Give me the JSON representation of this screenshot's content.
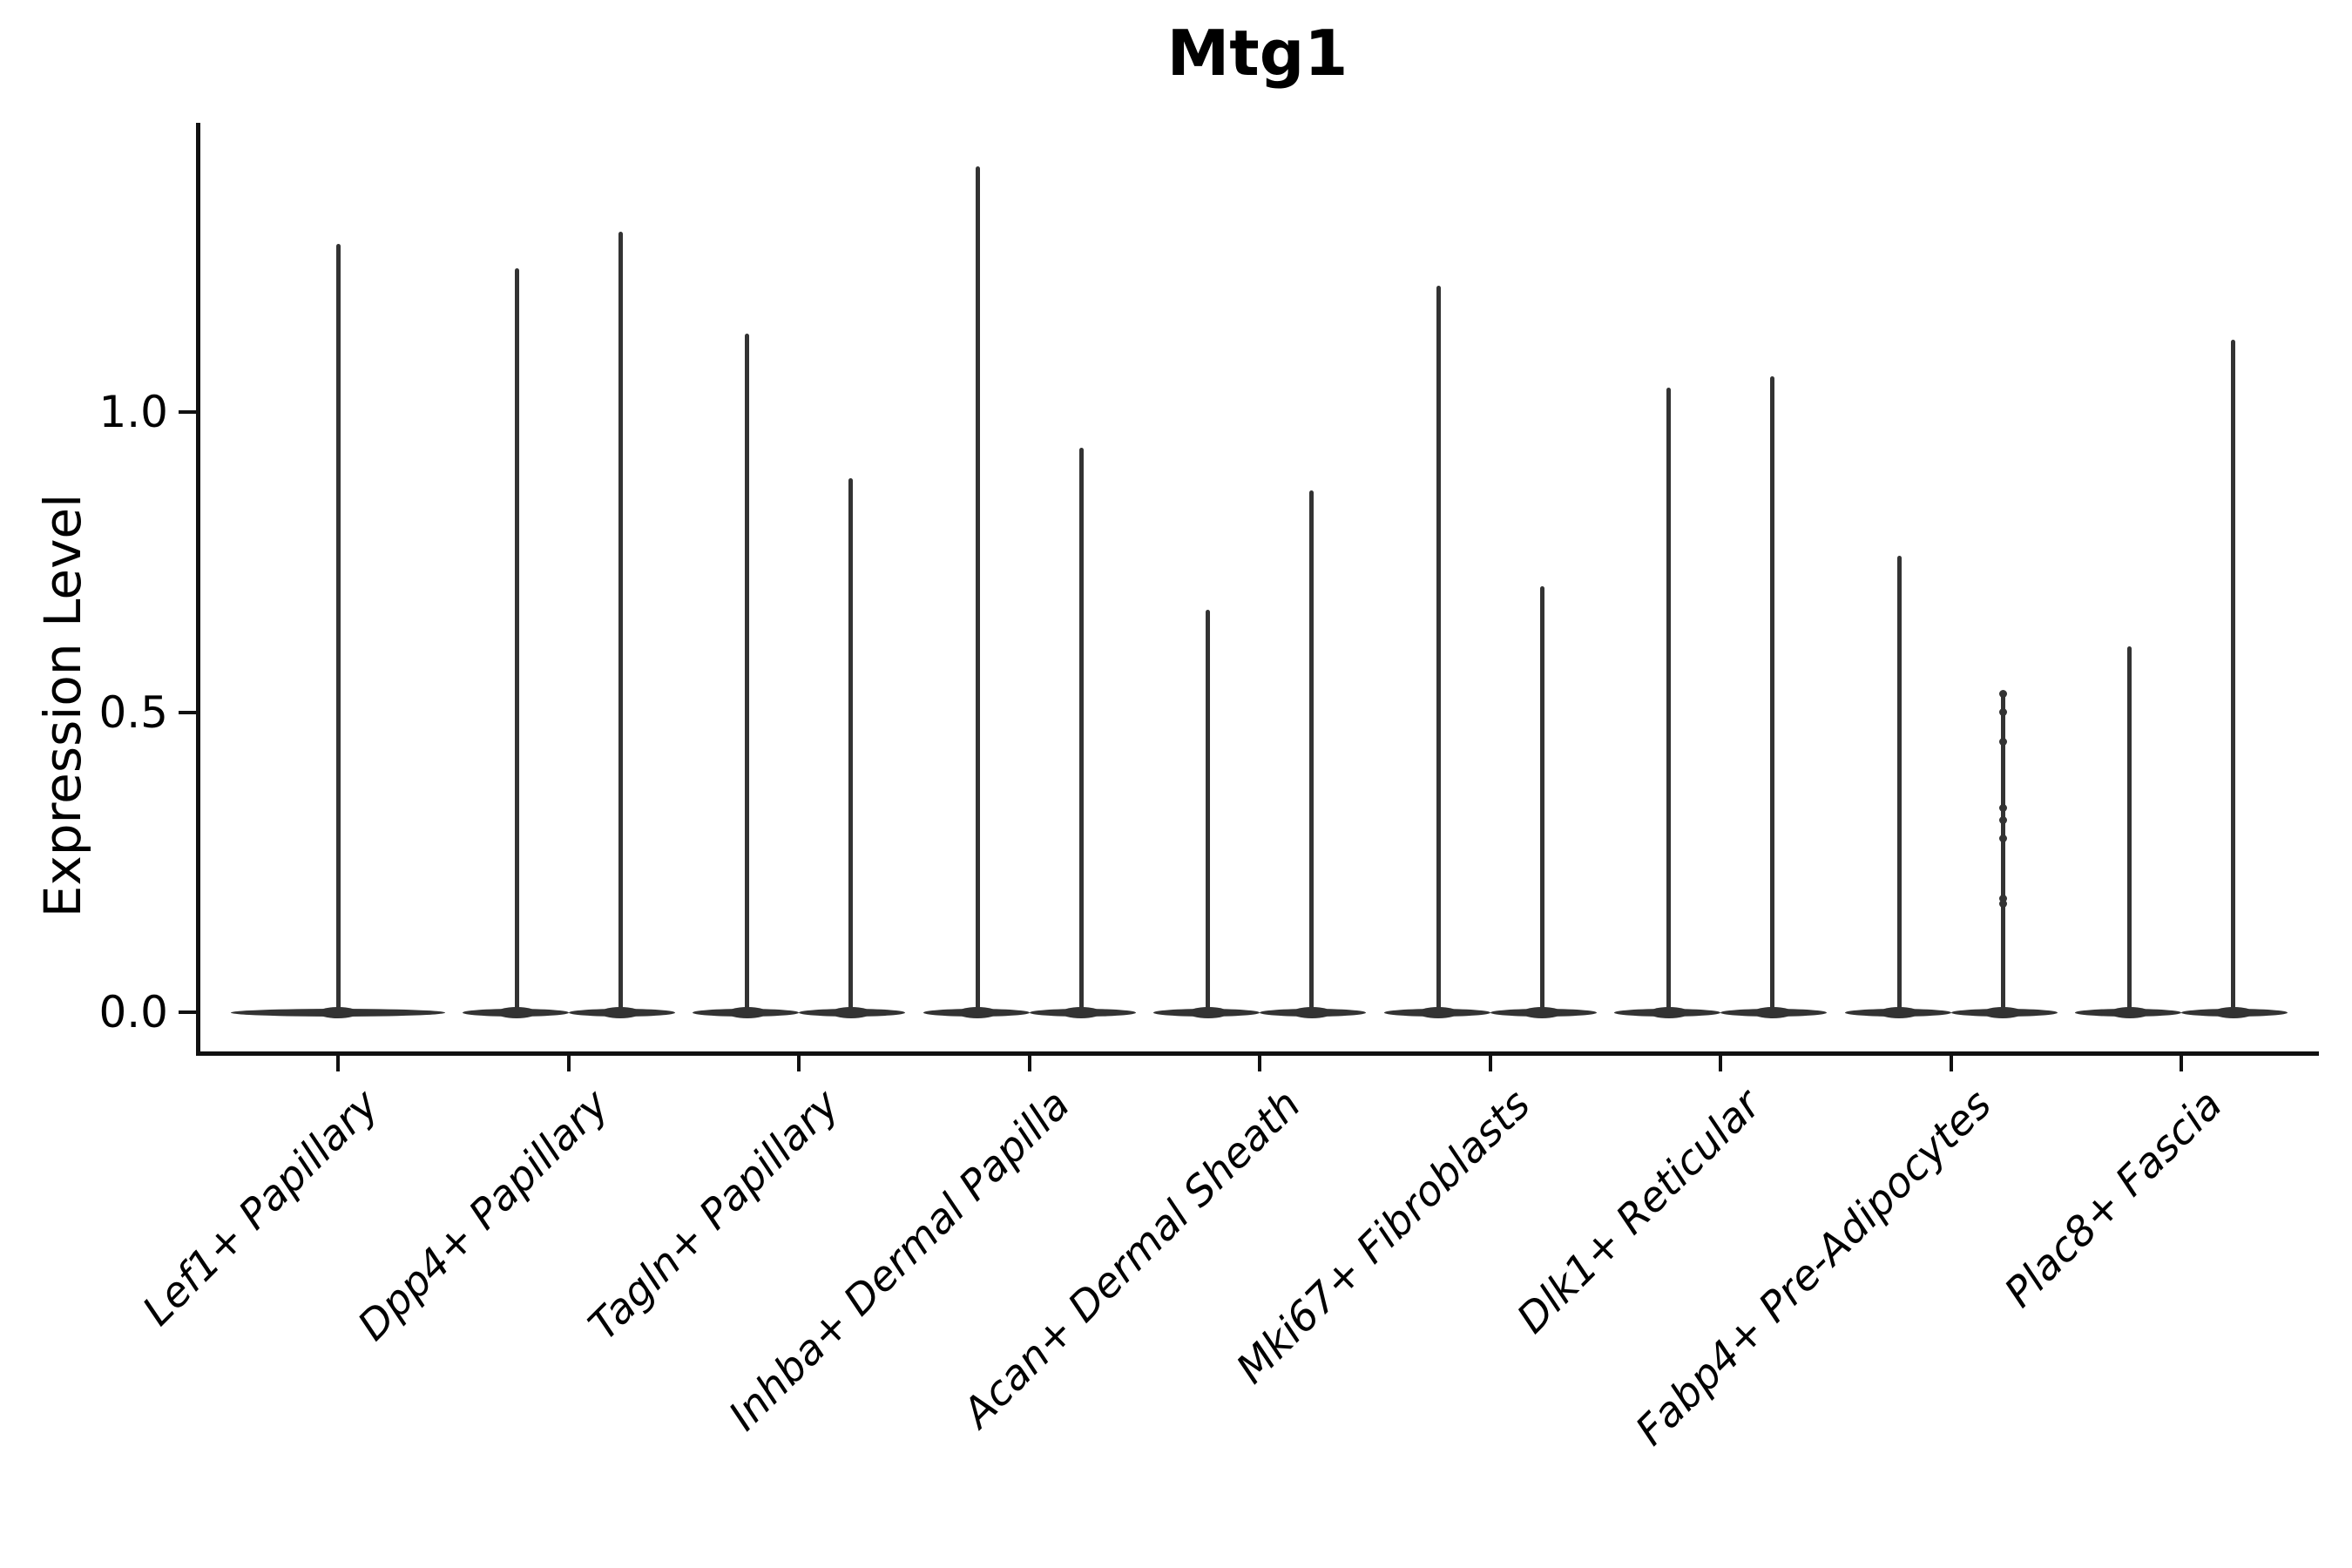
{
  "figure": {
    "background": "#ffffff"
  },
  "chart_data": {
    "type": "violin",
    "title": "Mtg1",
    "ylabel": "Expression Level",
    "xlabel": "",
    "yticks": [
      "0.0",
      "0.5",
      "1.0"
    ],
    "ytick_values": [
      0.0,
      0.5,
      1.0
    ],
    "ylim": [
      -0.07,
      1.48
    ],
    "grid": false,
    "legend": "none",
    "violin_color": "#333333",
    "axis_color": "#111111",
    "text_color": "#000000",
    "categories": [
      "Lef1+ Papillary",
      "Dpp4+ Papillary",
      "Tagln+ Papillary",
      "Inhba+ Dermal Papilla",
      "Acan+ Dermal Sheath",
      "Mki67+ Fibroblasts",
      "Dlk1+ Reticular",
      "Fabp4+ Pre-Adipocytes",
      "Plac8+ Fascia"
    ],
    "violins": [
      {
        "category": "Lef1+ Papillary",
        "split": false,
        "spikes": [
          {
            "pos": "center",
            "max": 1.28
          }
        ]
      },
      {
        "category": "Dpp4+ Papillary",
        "split": true,
        "spikes": [
          {
            "pos": "left",
            "max": 1.24
          },
          {
            "pos": "right",
            "max": 1.3
          }
        ]
      },
      {
        "category": "Tagln+ Papillary",
        "split": true,
        "spikes": [
          {
            "pos": "left",
            "max": 1.13
          },
          {
            "pos": "right",
            "max": 0.89
          }
        ]
      },
      {
        "category": "Inhba+ Dermal Papilla",
        "split": true,
        "spikes": [
          {
            "pos": "left",
            "max": 1.41
          },
          {
            "pos": "right",
            "max": 0.94
          }
        ]
      },
      {
        "category": "Acan+ Dermal Sheath",
        "split": true,
        "spikes": [
          {
            "pos": "left",
            "max": 0.67
          },
          {
            "pos": "right",
            "max": 0.87
          }
        ]
      },
      {
        "category": "Mki67+ Fibroblasts",
        "split": true,
        "spikes": [
          {
            "pos": "left",
            "max": 1.21
          },
          {
            "pos": "right",
            "max": 0.71
          }
        ]
      },
      {
        "category": "Dlk1+ Reticular",
        "split": true,
        "spikes": [
          {
            "pos": "left",
            "max": 1.04
          },
          {
            "pos": "right",
            "max": 1.06
          }
        ]
      },
      {
        "category": "Fabp4+ Pre-Adipocytes",
        "split": true,
        "spikes": [
          {
            "pos": "left",
            "max": 0.76
          },
          {
            "pos": "right",
            "max": 0.53,
            "points": [
              0.53,
              0.5,
              0.45,
              0.34,
              0.32,
              0.29,
              0.19,
              0.18
            ]
          }
        ]
      },
      {
        "category": "Plac8+ Fascia",
        "split": true,
        "spikes": [
          {
            "pos": "left",
            "max": 0.61
          },
          {
            "pos": "right",
            "max": 1.12
          }
        ]
      }
    ],
    "description": "Violin plot of Mtg1 expression per fibroblast subtype; density is concentrated at 0 (wide flat base) with thin spikes reaching each group's maximum expression."
  }
}
